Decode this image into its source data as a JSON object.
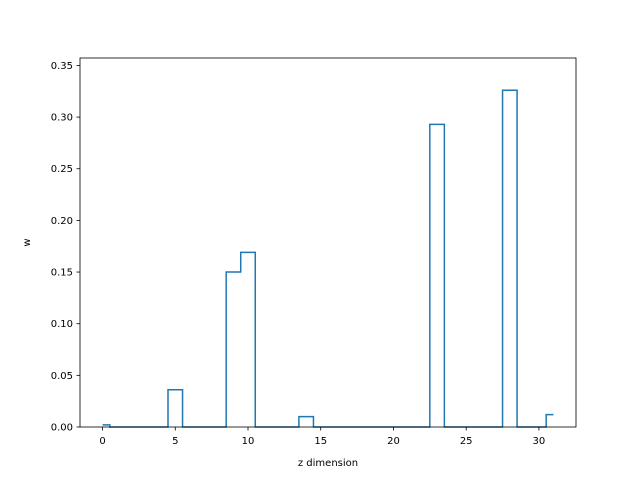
{
  "chart_data": {
    "type": "line",
    "drawstyle": "steps-mid",
    "xlabel": "z dimension",
    "ylabel": "w",
    "xlim": [
      -1.55,
      32.55
    ],
    "ylim": [
      0,
      0.3572
    ],
    "xticks": [
      0,
      5,
      10,
      15,
      20,
      25,
      30
    ],
    "xtick_labels": [
      "0",
      "5",
      "10",
      "15",
      "20",
      "25",
      "30"
    ],
    "yticks": [
      0.0,
      0.05,
      0.1,
      0.15,
      0.2,
      0.25,
      0.3,
      0.35
    ],
    "ytick_labels": [
      "0.00",
      "0.05",
      "0.10",
      "0.15",
      "0.20",
      "0.25",
      "0.30",
      "0.35"
    ],
    "grid": false,
    "legend": "none",
    "series": [
      {
        "color": "#1f77b4",
        "x": [
          0,
          1,
          2,
          3,
          4,
          5,
          6,
          7,
          8,
          9,
          10,
          11,
          12,
          13,
          14,
          15,
          16,
          17,
          18,
          19,
          20,
          21,
          22,
          23,
          24,
          25,
          26,
          27,
          28,
          29,
          30,
          31
        ],
        "y": [
          0.002,
          0,
          0,
          0,
          0,
          0.036,
          0,
          0,
          0,
          0.15,
          0.169,
          0,
          0,
          0,
          0.01,
          0,
          0,
          0,
          0,
          0,
          0,
          0,
          0,
          0.293,
          0,
          0,
          0,
          0,
          0.326,
          0,
          0,
          0.012
        ]
      }
    ]
  }
}
